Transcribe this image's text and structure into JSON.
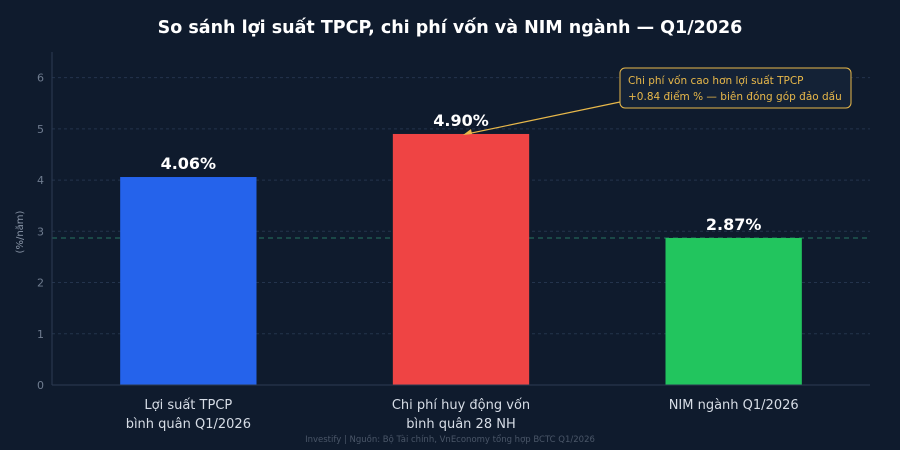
{
  "chart_data": {
    "type": "bar",
    "title": "So sánh lợi suất TPCP, chi phí vốn và NIM ngành — Q1/2026",
    "ylabel": "(%/năm)",
    "xlabel": "",
    "ylim": [
      0,
      6.5
    ],
    "yticks": [
      0,
      1,
      2,
      3,
      4,
      5,
      6
    ],
    "grid": true,
    "categories": [
      [
        "Lợi suất TPCP",
        "bình quân Q1/2026"
      ],
      [
        "Chi phí huy động vốn",
        "bình quân 28 NH"
      ],
      [
        "NIM ngành Q1/2026"
      ]
    ],
    "values": [
      4.06,
      4.9,
      2.87
    ],
    "value_labels": [
      "4.06%",
      "4.90%",
      "2.87%"
    ],
    "colors": [
      "#2563eb",
      "#ef4444",
      "#22c55e"
    ],
    "reference_line": {
      "value": 2.87,
      "style": "dashed",
      "color": "#2e8b6e"
    },
    "annotation": {
      "lines": [
        "Chi phí vốn cao hơn lợi suất TPCP",
        "+0.84 điểm % — biên đóng góp đảo dấu"
      ],
      "target_index": 1,
      "color": "#e8b84a"
    },
    "source": "Investify   |   Nguồn: Bộ Tài chính, VnEconomy tổng hợp BCTC Q1/2026"
  }
}
